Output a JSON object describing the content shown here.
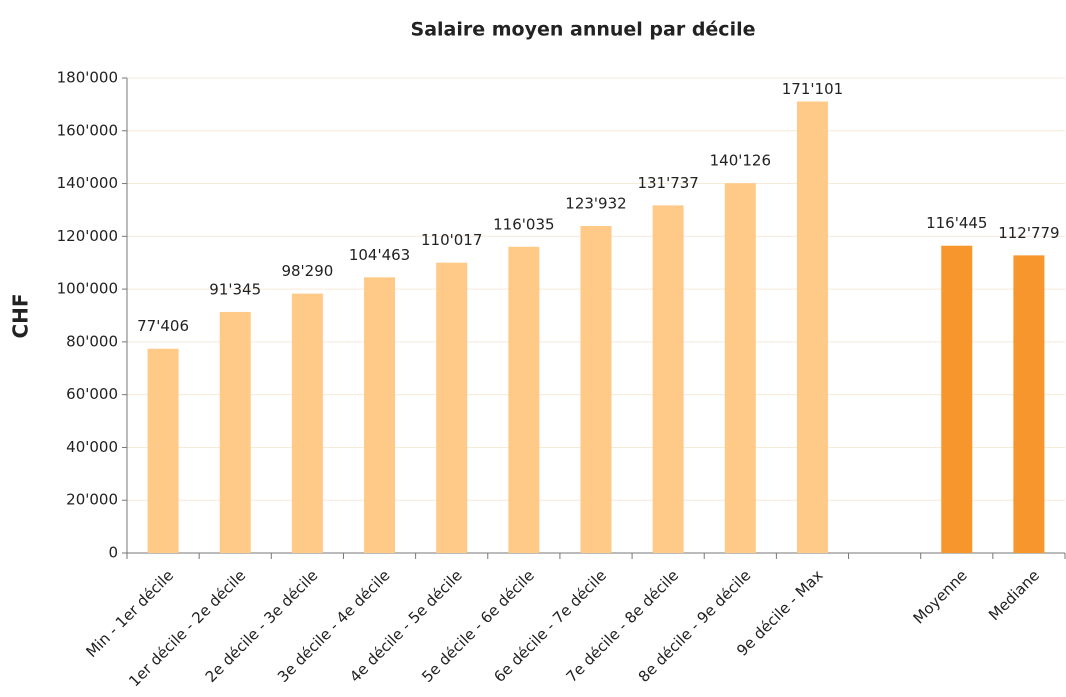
{
  "chart_data": {
    "type": "bar",
    "title": "Salaire moyen annuel par décile",
    "y_label": "CHF",
    "categories": [
      "Min - 1er décile",
      "1er décile - 2e décile",
      "2e décile - 3e décile",
      "3e décile - 4e décile",
      "4e décile - 5e décile",
      "5e décile - 6e décile",
      "6e décile - 7e décile",
      "7e décile - 8e décile",
      "8e décile - 9e décile",
      "9e décile - Max",
      null,
      "Moyenne",
      "Mediane"
    ],
    "values": [
      77406,
      91345,
      98290,
      104463,
      110017,
      116035,
      123932,
      131737,
      140126,
      171101,
      null,
      116445,
      112779
    ],
    "value_labels": [
      "77'406",
      "91'345",
      "98'290",
      "104'463",
      "110'017",
      "116'035",
      "123'932",
      "131'737",
      "140'126",
      "171'101",
      null,
      "116'445",
      "112'779"
    ],
    "colors": [
      "#ffc988",
      "#ffc988",
      "#ffc988",
      "#ffc988",
      "#ffc988",
      "#ffc988",
      "#ffc988",
      "#ffc988",
      "#ffc988",
      "#ffc988",
      null,
      "#f7962d",
      "#f7962d"
    ],
    "ylim": [
      0,
      180000
    ],
    "yticks": [
      0,
      {
        "value": 20000,
        "label": "20'000"
      },
      {
        "value": 40000,
        "label": "40'000"
      },
      {
        "value": 60000,
        "label": "60'000"
      },
      {
        "value": 80000,
        "label": "80'000"
      },
      {
        "value": 100000,
        "label": "100'000"
      },
      {
        "value": 120000,
        "label": "120'000"
      },
      {
        "value": 140000,
        "label": "140'000"
      },
      {
        "value": 160000,
        "label": "160'000"
      },
      {
        "value": 180000,
        "label": "180'000"
      }
    ],
    "grid": true
  }
}
